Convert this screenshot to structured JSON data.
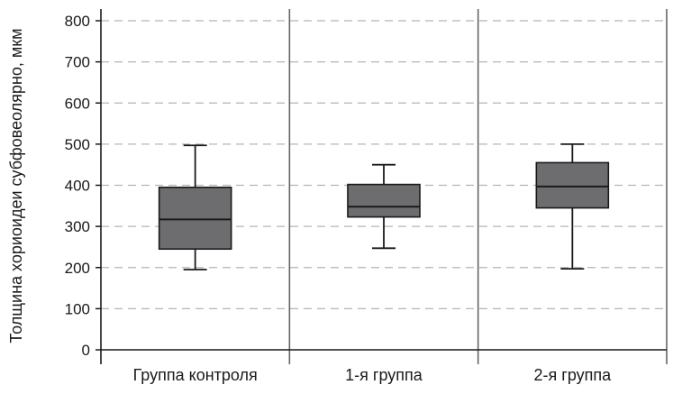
{
  "chart_data": {
    "type": "box",
    "ylabel": "Толщина хориоидеи субфовеолярно, мкм",
    "xlabel": "",
    "ylim": [
      0,
      800
    ],
    "yticks": [
      0,
      100,
      200,
      300,
      400,
      500,
      600,
      700,
      800
    ],
    "grid": true,
    "categories": [
      "Группа контроля",
      "1-я группа",
      "2-я группа"
    ],
    "boxes": [
      {
        "category": "Группа контроля",
        "min": 195,
        "q1": 245,
        "median": 317,
        "q3": 395,
        "max": 497
      },
      {
        "category": "1-я группа",
        "min": 247,
        "q1": 323,
        "median": 348,
        "q3": 402,
        "max": 450
      },
      {
        "category": "2-я группа",
        "min": 197,
        "q1": 345,
        "median": 397,
        "q3": 455,
        "max": 500
      }
    ],
    "colors": {
      "box_fill": "#6d6d6f",
      "box_stroke": "#1a1a1a",
      "grid": "#b5b5b5",
      "axis": "#1a1a1a",
      "separator": "#666666"
    }
  }
}
